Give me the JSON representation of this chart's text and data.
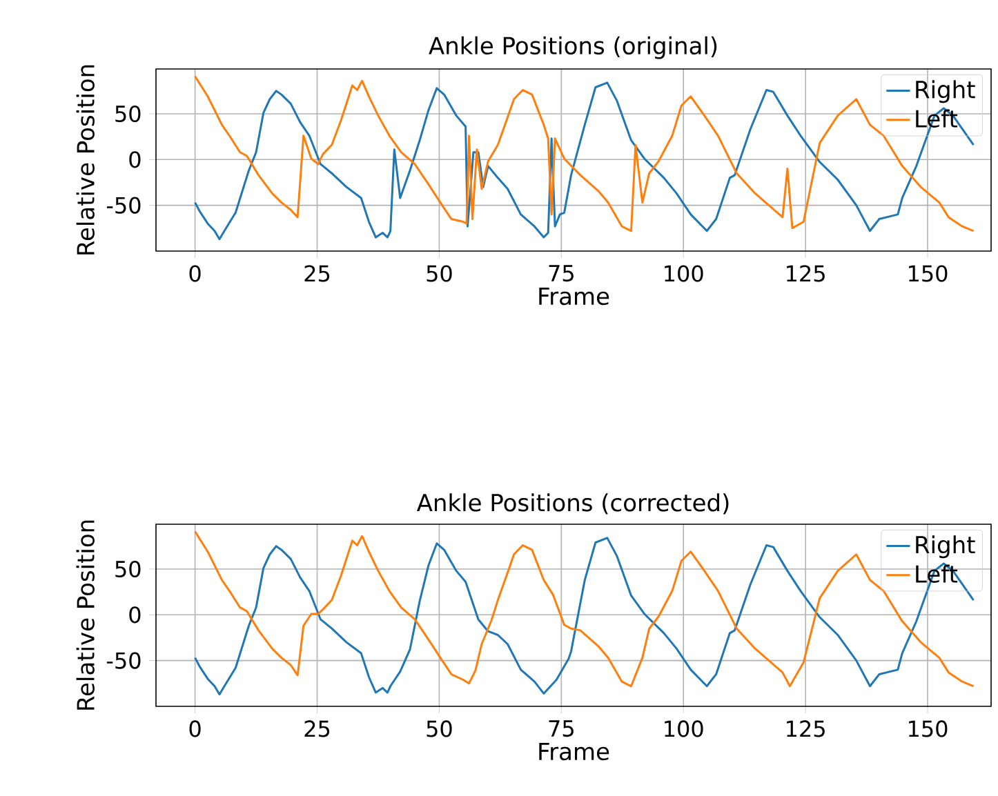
{
  "chart_data": [
    {
      "type": "line",
      "title": "Ankle Positions (original)",
      "xlabel": "Frame",
      "ylabel": "Relative Position",
      "xlim": [
        -8,
        163
      ],
      "ylim": [
        -100,
        99
      ],
      "xticks": [
        0,
        25,
        50,
        75,
        100,
        125,
        150
      ],
      "yticks": [
        -50,
        0,
        50
      ],
      "grid": true,
      "legend": "top right",
      "series": [
        {
          "name": "Right",
          "color": "#1f77b4",
          "x": [
            0,
            1,
            2.6,
            4,
            5,
            6,
            8.3,
            11,
            12.5,
            14,
            15.3,
            16.6,
            17.7,
            19.6,
            21.5,
            23.4,
            25.7,
            28,
            31,
            34,
            35.6,
            37,
            38.4,
            39.4,
            40,
            40.8,
            42,
            44,
            46,
            47.8,
            49.5,
            51,
            53.5,
            55.4,
            55.8,
            57,
            58,
            59,
            60,
            62,
            64,
            66.7,
            69.5,
            71.4,
            72.3,
            73,
            73.7,
            74.7,
            75.6,
            77,
            79.8,
            82,
            84.4,
            86.4,
            89.3,
            92,
            96,
            98.6,
            101.5,
            104.8,
            106.7,
            109.5,
            110.5,
            113.7,
            117,
            118.4,
            121.3,
            124,
            127.8,
            131.6,
            135.4,
            138.2,
            140.1,
            143.9,
            144.8,
            147.7,
            151.4,
            153.3,
            155.2,
            159.4
          ],
          "values": [
            -47,
            -57,
            -70,
            -78,
            -87,
            -78,
            -58,
            -12,
            8,
            51,
            66,
            75,
            71,
            61,
            41,
            26,
            -5,
            -15,
            -30,
            -42,
            -68,
            -85,
            -80,
            -85,
            -78,
            11,
            -42,
            -12,
            21,
            54,
            78,
            71,
            48,
            36,
            -73,
            8,
            8,
            -30,
            -7,
            -20,
            -32,
            -60,
            -73,
            -85,
            -80,
            23,
            -73,
            -60,
            -58,
            -17,
            38,
            79,
            84,
            64,
            21,
            1,
            -20,
            -37,
            -60,
            -78,
            -65,
            -20,
            -17,
            33,
            76,
            74,
            48,
            26,
            -2,
            -22,
            -50,
            -78,
            -65,
            -60,
            -42,
            -7,
            48,
            56,
            48,
            16
          ]
        },
        {
          "name": "Left",
          "color": "#ff7f0e",
          "x": [
            0,
            2.6,
            5.5,
            7.3,
            9.2,
            10.6,
            13,
            15.8,
            17.7,
            19.6,
            21,
            22.2,
            23.8,
            25.2,
            26.2,
            28,
            29.9,
            32.2,
            33.2,
            34.2,
            35.6,
            37.5,
            39.8,
            42.2,
            45,
            47.8,
            50.6,
            52.5,
            54.9,
            55.6,
            56.1,
            56.8,
            57.7,
            58.7,
            60,
            62,
            63.8,
            65.3,
            67.1,
            69,
            71.4,
            72.3,
            73,
            73.7,
            75.6,
            78.9,
            82.7,
            84.6,
            87.4,
            89.3,
            90.2,
            91.6,
            93,
            94.9,
            97.7,
            99.6,
            101.5,
            104.3,
            107.1,
            110.9,
            114.7,
            120.3,
            121.3,
            122.3,
            124.6,
            127.9,
            131.6,
            135.4,
            138.2,
            141,
            144.8,
            148.6,
            152.4,
            154.3,
            157.1,
            159.4
          ],
          "values": [
            91,
            69,
            38,
            24,
            8,
            4,
            -17,
            -37,
            -47,
            -55,
            -63,
            26,
            1,
            -5,
            6,
            16,
            43,
            81,
            76,
            86,
            69,
            48,
            26,
            8,
            -5,
            -27,
            -50,
            -65,
            -68,
            -70,
            26,
            -65,
            11,
            -32,
            -2,
            16,
            43,
            66,
            76,
            71,
            38,
            23,
            -60,
            23,
            1,
            -17,
            -35,
            -47,
            -73,
            -78,
            16,
            -47,
            -15,
            -2,
            26,
            59,
            69,
            48,
            26,
            -15,
            -37,
            -63,
            -10,
            -75,
            -68,
            18,
            48,
            66,
            38,
            26,
            -7,
            -30,
            -47,
            -63,
            -73,
            -78
          ]
        }
      ]
    },
    {
      "type": "line",
      "title": "Ankle Positions (corrected)",
      "xlabel": "Frame",
      "ylabel": "Relative Position",
      "xlim": [
        -8,
        163
      ],
      "ylim": [
        -100,
        99
      ],
      "xticks": [
        0,
        25,
        50,
        75,
        100,
        125,
        150
      ],
      "yticks": [
        -50,
        0,
        50
      ],
      "grid": true,
      "legend": "top right",
      "series": [
        {
          "name": "Right",
          "color": "#1f77b4",
          "x": [
            0,
            1,
            2.6,
            4,
            5,
            6,
            8.3,
            11,
            12.5,
            14,
            15.3,
            16.6,
            17.7,
            19.6,
            21.5,
            23.4,
            25.7,
            28,
            31,
            34,
            35.6,
            37,
            38.4,
            39.4,
            40,
            42,
            44,
            46,
            47.8,
            49.5,
            51,
            53.5,
            55.4,
            58,
            60,
            62,
            64,
            66.7,
            69.5,
            71.4,
            74,
            76.5,
            77,
            79.8,
            82,
            84.4,
            86.4,
            89.3,
            92,
            96,
            98.6,
            101.5,
            104.8,
            106.7,
            109.5,
            110.5,
            113.7,
            117,
            118.4,
            121.3,
            124,
            127.8,
            131.6,
            135.4,
            138.2,
            140.1,
            143.9,
            144.8,
            147.7,
            151.4,
            153.3,
            155.2,
            159.4
          ],
          "values": [
            -47,
            -57,
            -70,
            -78,
            -87,
            -78,
            -58,
            -12,
            8,
            51,
            66,
            75,
            71,
            61,
            41,
            26,
            -5,
            -15,
            -30,
            -42,
            -68,
            -85,
            -80,
            -85,
            -78,
            -62,
            -38,
            15,
            54,
            78,
            71,
            48,
            36,
            -5,
            -18,
            -22,
            -32,
            -60,
            -73,
            -86,
            -71,
            -48,
            -40,
            38,
            79,
            84,
            64,
            21,
            1,
            -20,
            -37,
            -60,
            -78,
            -65,
            -20,
            -17,
            33,
            76,
            74,
            48,
            26,
            -2,
            -22,
            -50,
            -78,
            -65,
            -60,
            -42,
            -7,
            48,
            56,
            48,
            16
          ]
        },
        {
          "name": "Left",
          "color": "#ff7f0e",
          "x": [
            0,
            2.6,
            5.5,
            7.3,
            9.2,
            10.6,
            13,
            15.8,
            17.7,
            19.6,
            21,
            22.2,
            23.8,
            25.2,
            26.2,
            28,
            29.9,
            32.2,
            33.2,
            34.2,
            35.6,
            37.5,
            39.8,
            42.2,
            45,
            47.8,
            50.6,
            52.5,
            54.9,
            56.1,
            57.4,
            58.7,
            60.7,
            62,
            63.8,
            65.3,
            67.1,
            69,
            71.4,
            73.3,
            75.6,
            77,
            78.9,
            82.7,
            84.6,
            87.4,
            89.3,
            91.6,
            93,
            94.9,
            97.7,
            99.6,
            101.5,
            104.3,
            107.1,
            110.9,
            114.7,
            120.3,
            121.8,
            124.6,
            127.9,
            131.6,
            135.4,
            138.2,
            141,
            144.8,
            148.6,
            152.4,
            154.3,
            157.1,
            159.4
          ],
          "values": [
            91,
            69,
            38,
            24,
            8,
            4,
            -17,
            -37,
            -47,
            -55,
            -66,
            -12,
            1,
            1,
            6,
            16,
            43,
            81,
            76,
            86,
            69,
            48,
            26,
            8,
            -5,
            -27,
            -50,
            -65,
            -71,
            -75,
            -61,
            -32,
            -6,
            16,
            43,
            66,
            76,
            71,
            38,
            22,
            -11,
            -15,
            -17,
            -35,
            -47,
            -73,
            -78,
            -47,
            -15,
            -2,
            26,
            59,
            69,
            48,
            26,
            -15,
            -37,
            -63,
            -78,
            -52,
            18,
            48,
            66,
            38,
            26,
            -7,
            -30,
            -47,
            -63,
            -73,
            -78
          ]
        }
      ]
    }
  ]
}
